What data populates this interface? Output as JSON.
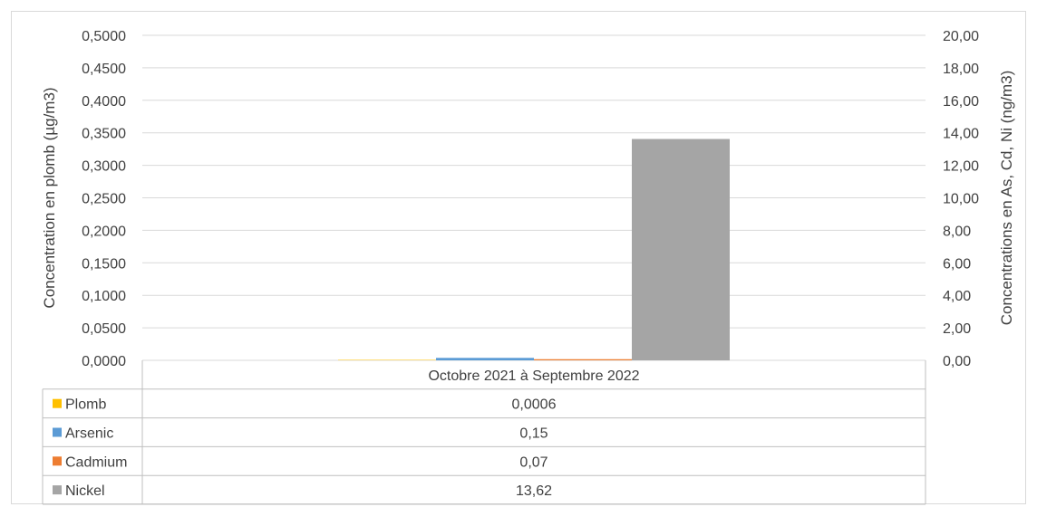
{
  "chart_data": {
    "type": "bar",
    "categories": [
      "Octobre 2021 à Septembre 2022"
    ],
    "series": [
      {
        "name": "Plomb",
        "values": [
          0.0006
        ],
        "value_label": "0,0006",
        "axis": "left",
        "color": "#ffc000"
      },
      {
        "name": "Arsenic",
        "values": [
          0.15
        ],
        "value_label": "0,15",
        "axis": "right",
        "color": "#5b9bd5"
      },
      {
        "name": "Cadmium",
        "values": [
          0.07
        ],
        "value_label": "0,07",
        "axis": "right",
        "color": "#ed7d31"
      },
      {
        "name": "Nickel",
        "values": [
          13.62
        ],
        "value_label": "13,62",
        "axis": "right",
        "color": "#a5a5a5"
      }
    ],
    "y_left": {
      "label": "Concentration en plomb (µg/m3)",
      "ylim": [
        0,
        0.5
      ],
      "ticks": [
        "0,0000",
        "0,0500",
        "0,1000",
        "0,1500",
        "0,2000",
        "0,2500",
        "0,3000",
        "0,3500",
        "0,4000",
        "0,4500",
        "0,5000"
      ]
    },
    "y_right": {
      "label": "Concentrations en As, Cd, Ni (ng/m3)",
      "ylim": [
        0,
        20
      ],
      "ticks": [
        "0,00",
        "2,00",
        "4,00",
        "6,00",
        "8,00",
        "10,00",
        "12,00",
        "14,00",
        "16,00",
        "18,00",
        "20,00"
      ]
    },
    "grid": true,
    "legend": "data-table"
  }
}
